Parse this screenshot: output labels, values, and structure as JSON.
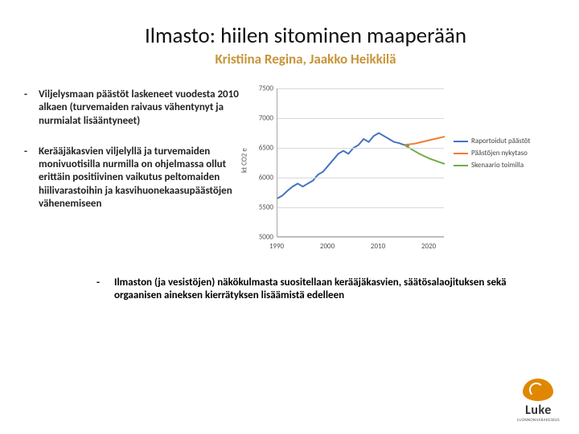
{
  "title": "Ilmasto: hiilen sitominen maaperään",
  "subtitle": "Kristiina Regina, Jaakko Heikkilä",
  "bullets": [
    "Viljelysmaan päästöt laskeneet vuodesta 2010 alkaen (turvemaiden raivaus vähentynyt ja nurmialat lisääntyneet)",
    "Kerääjäkasvien viljelyllä ja turvemaiden monivuotisilla nurmilla on ohjelmassa ollut erittäin positiivinen vaikutus peltomaiden hiilivarastoihin ja kasvihuonekaasupäästöjen vähenemiseen"
  ],
  "footer_bullet": "Ilmaston (ja vesistöjen) näkökulmasta suositellaan kerääjäkasvien, säätösalaojituksen sekä orgaanisen aineksen kierrätyksen lisäämistä edelleen",
  "chart": {
    "type": "line",
    "ylabel": "kt CO2 e",
    "ylim": [
      5000,
      7500
    ],
    "ytick_step": 500,
    "yticks": [
      5000,
      5500,
      6000,
      6500,
      7000,
      7500
    ],
    "xlim": [
      1990,
      2023
    ],
    "xticks": [
      1990,
      2000,
      2010,
      2020
    ],
    "grid_color": "#d9d9d9",
    "axis_color": "#a6a6a6",
    "tick_fontsize": 9,
    "series": [
      {
        "name": "Raportoidut päästöt",
        "color": "#4472c4",
        "width": 2,
        "points": [
          [
            1990,
            5650
          ],
          [
            1991,
            5700
          ],
          [
            1992,
            5780
          ],
          [
            1993,
            5850
          ],
          [
            1994,
            5900
          ],
          [
            1995,
            5850
          ],
          [
            1996,
            5900
          ],
          [
            1997,
            5950
          ],
          [
            1998,
            6050
          ],
          [
            1999,
            6100
          ],
          [
            2000,
            6200
          ],
          [
            2001,
            6300
          ],
          [
            2002,
            6400
          ],
          [
            2003,
            6450
          ],
          [
            2004,
            6400
          ],
          [
            2005,
            6500
          ],
          [
            2006,
            6550
          ],
          [
            2007,
            6650
          ],
          [
            2008,
            6600
          ],
          [
            2009,
            6700
          ],
          [
            2010,
            6750
          ],
          [
            2011,
            6700
          ],
          [
            2012,
            6650
          ],
          [
            2013,
            6600
          ],
          [
            2014,
            6580
          ],
          [
            2015,
            6550
          ],
          [
            2016,
            6540
          ]
        ]
      },
      {
        "name": "Päästöjen nykytaso",
        "color": "#ed7d31",
        "width": 2,
        "points": [
          [
            2015,
            6550
          ],
          [
            2016,
            6560
          ],
          [
            2017,
            6570
          ],
          [
            2018,
            6590
          ],
          [
            2019,
            6610
          ],
          [
            2020,
            6630
          ],
          [
            2021,
            6650
          ],
          [
            2022,
            6670
          ],
          [
            2023,
            6690
          ]
        ]
      },
      {
        "name": "Skenaario toimilla",
        "color": "#70ad47",
        "width": 2,
        "points": [
          [
            2015,
            6550
          ],
          [
            2016,
            6500
          ],
          [
            2017,
            6450
          ],
          [
            2018,
            6400
          ],
          [
            2019,
            6360
          ],
          [
            2020,
            6320
          ],
          [
            2021,
            6290
          ],
          [
            2022,
            6260
          ],
          [
            2023,
            6230
          ]
        ]
      }
    ]
  },
  "logo": {
    "word": "Luke",
    "tag": "LUONNONVARAKESKUS"
  }
}
